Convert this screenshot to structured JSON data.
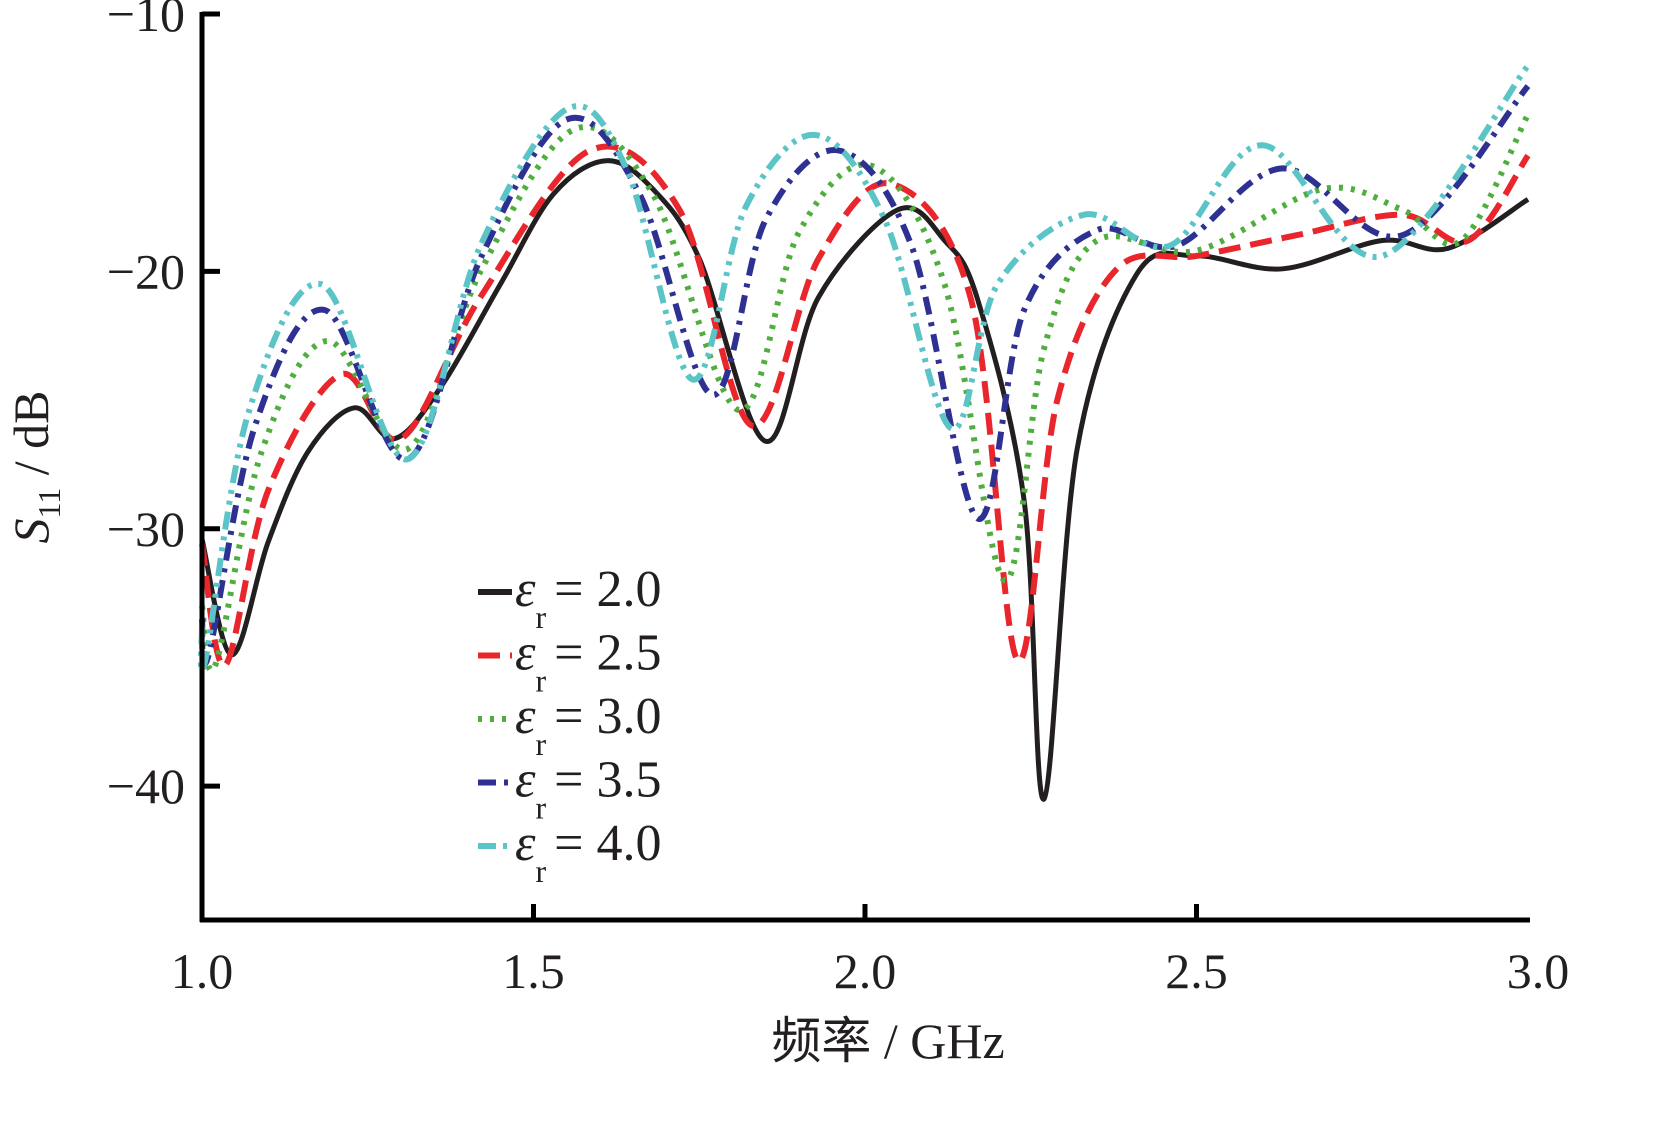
{
  "chart_data": {
    "type": "line",
    "title": "",
    "xlabel": "频率 / GHz",
    "ylabel_main": "S",
    "ylabel_sub": "11",
    "ylabel_unit": " / dB",
    "xlim": [
      1.0,
      3.0
    ],
    "ylim": [
      -45.2,
      -10
    ],
    "xticks": [
      1.0,
      1.5,
      2.0,
      2.5,
      3.0
    ],
    "xtick_labels": [
      "1.0",
      "1.5",
      "2.0",
      "2.5",
      "3.0"
    ],
    "yticks": [
      -10,
      -20,
      -30,
      -40
    ],
    "ytick_labels": [
      "−10",
      "−20",
      "−30",
      "−40"
    ],
    "grid": false,
    "legend_placement": "lower-left-center",
    "legend_symbol": "ε",
    "legend_sub": "r",
    "series": [
      {
        "name": "εr = 2.0",
        "value_label": "= 2.0",
        "color": "#231f20",
        "dash": "solid",
        "x": [
          1.0,
          1.045,
          1.1,
          1.16,
          1.23,
          1.29,
          1.36,
          1.45,
          1.53,
          1.61,
          1.68,
          1.75,
          1.85,
          1.93,
          2.05,
          2.12,
          2.17,
          2.24,
          2.27,
          2.32,
          2.41,
          2.5,
          2.63,
          2.78,
          2.88,
          3.0
        ],
        "y": [
          -30.4,
          -34.9,
          -30.5,
          -27.0,
          -25.3,
          -26.5,
          -24.5,
          -20.5,
          -17.0,
          -15.7,
          -16.8,
          -19.5,
          -26.6,
          -21.0,
          -17.6,
          -18.8,
          -21.1,
          -28.9,
          -40.5,
          -26.9,
          -20.1,
          -19.4,
          -19.9,
          -18.8,
          -19.1,
          -17.2
        ]
      },
      {
        "name": "εr = 2.5",
        "value_label": "= 2.5",
        "color": "#e8262c",
        "dash": "dashed",
        "x": [
          1.0,
          1.035,
          1.1,
          1.21,
          1.3,
          1.42,
          1.585,
          1.72,
          1.83,
          1.93,
          2.04,
          2.16,
          2.23,
          2.29,
          2.38,
          2.5,
          2.65,
          2.81,
          2.91,
          3.0
        ],
        "y": [
          -30.6,
          -35.3,
          -28.5,
          -24.0,
          -26.5,
          -21.0,
          -15.3,
          -17.6,
          -26.0,
          -19.5,
          -16.6,
          -21.1,
          -35.1,
          -25.0,
          -19.9,
          -19.4,
          -18.6,
          -17.8,
          -18.8,
          -15.5
        ]
      },
      {
        "name": "εr = 3.0",
        "value_label": "= 3.0",
        "color": "#4fae3d",
        "dash": "dotted",
        "x": [
          1.0,
          1.02,
          1.09,
          1.19,
          1.31,
          1.42,
          1.56,
          1.68,
          1.81,
          1.9,
          2.01,
          2.12,
          2.21,
          2.27,
          2.35,
          2.5,
          2.69,
          2.81,
          2.9,
          3.0
        ],
        "y": [
          -33.0,
          -35.3,
          -27.0,
          -22.7,
          -26.9,
          -20.0,
          -14.5,
          -17.0,
          -25.4,
          -18.5,
          -15.9,
          -20.5,
          -32.0,
          -23.0,
          -18.8,
          -19.2,
          -16.8,
          -17.6,
          -18.8,
          -13.9
        ]
      },
      {
        "name": "εr = 3.5",
        "value_label": "= 3.5",
        "color": "#2e3192",
        "dash": "dashdot",
        "x": [
          1.0,
          1.01,
          1.08,
          1.185,
          1.31,
          1.42,
          1.55,
          1.66,
          1.77,
          1.85,
          1.96,
          2.07,
          2.17,
          2.24,
          2.35,
          2.47,
          2.63,
          2.81,
          3.0
        ],
        "y": [
          -33.5,
          -34.9,
          -26.0,
          -21.5,
          -27.3,
          -19.5,
          -14.1,
          -17.0,
          -24.8,
          -18.0,
          -15.3,
          -19.0,
          -29.6,
          -21.5,
          -18.4,
          -19.0,
          -16.0,
          -18.6,
          -12.8
        ]
      },
      {
        "name": "εr = 4.0",
        "value_label": "= 4.0",
        "color": "#5bc4c6",
        "dash": "dashdotdot",
        "x": [
          1.0,
          1.005,
          1.07,
          1.18,
          1.31,
          1.42,
          1.55,
          1.64,
          1.74,
          1.82,
          1.925,
          2.03,
          2.13,
          2.2,
          2.33,
          2.46,
          2.6,
          2.78,
          3.0
        ],
        "y": [
          -33.8,
          -35.1,
          -25.5,
          -20.5,
          -27.3,
          -19.0,
          -13.7,
          -16.0,
          -24.2,
          -17.5,
          -14.7,
          -18.0,
          -26.1,
          -20.5,
          -17.8,
          -19.0,
          -15.1,
          -19.4,
          -12.0
        ]
      }
    ]
  }
}
